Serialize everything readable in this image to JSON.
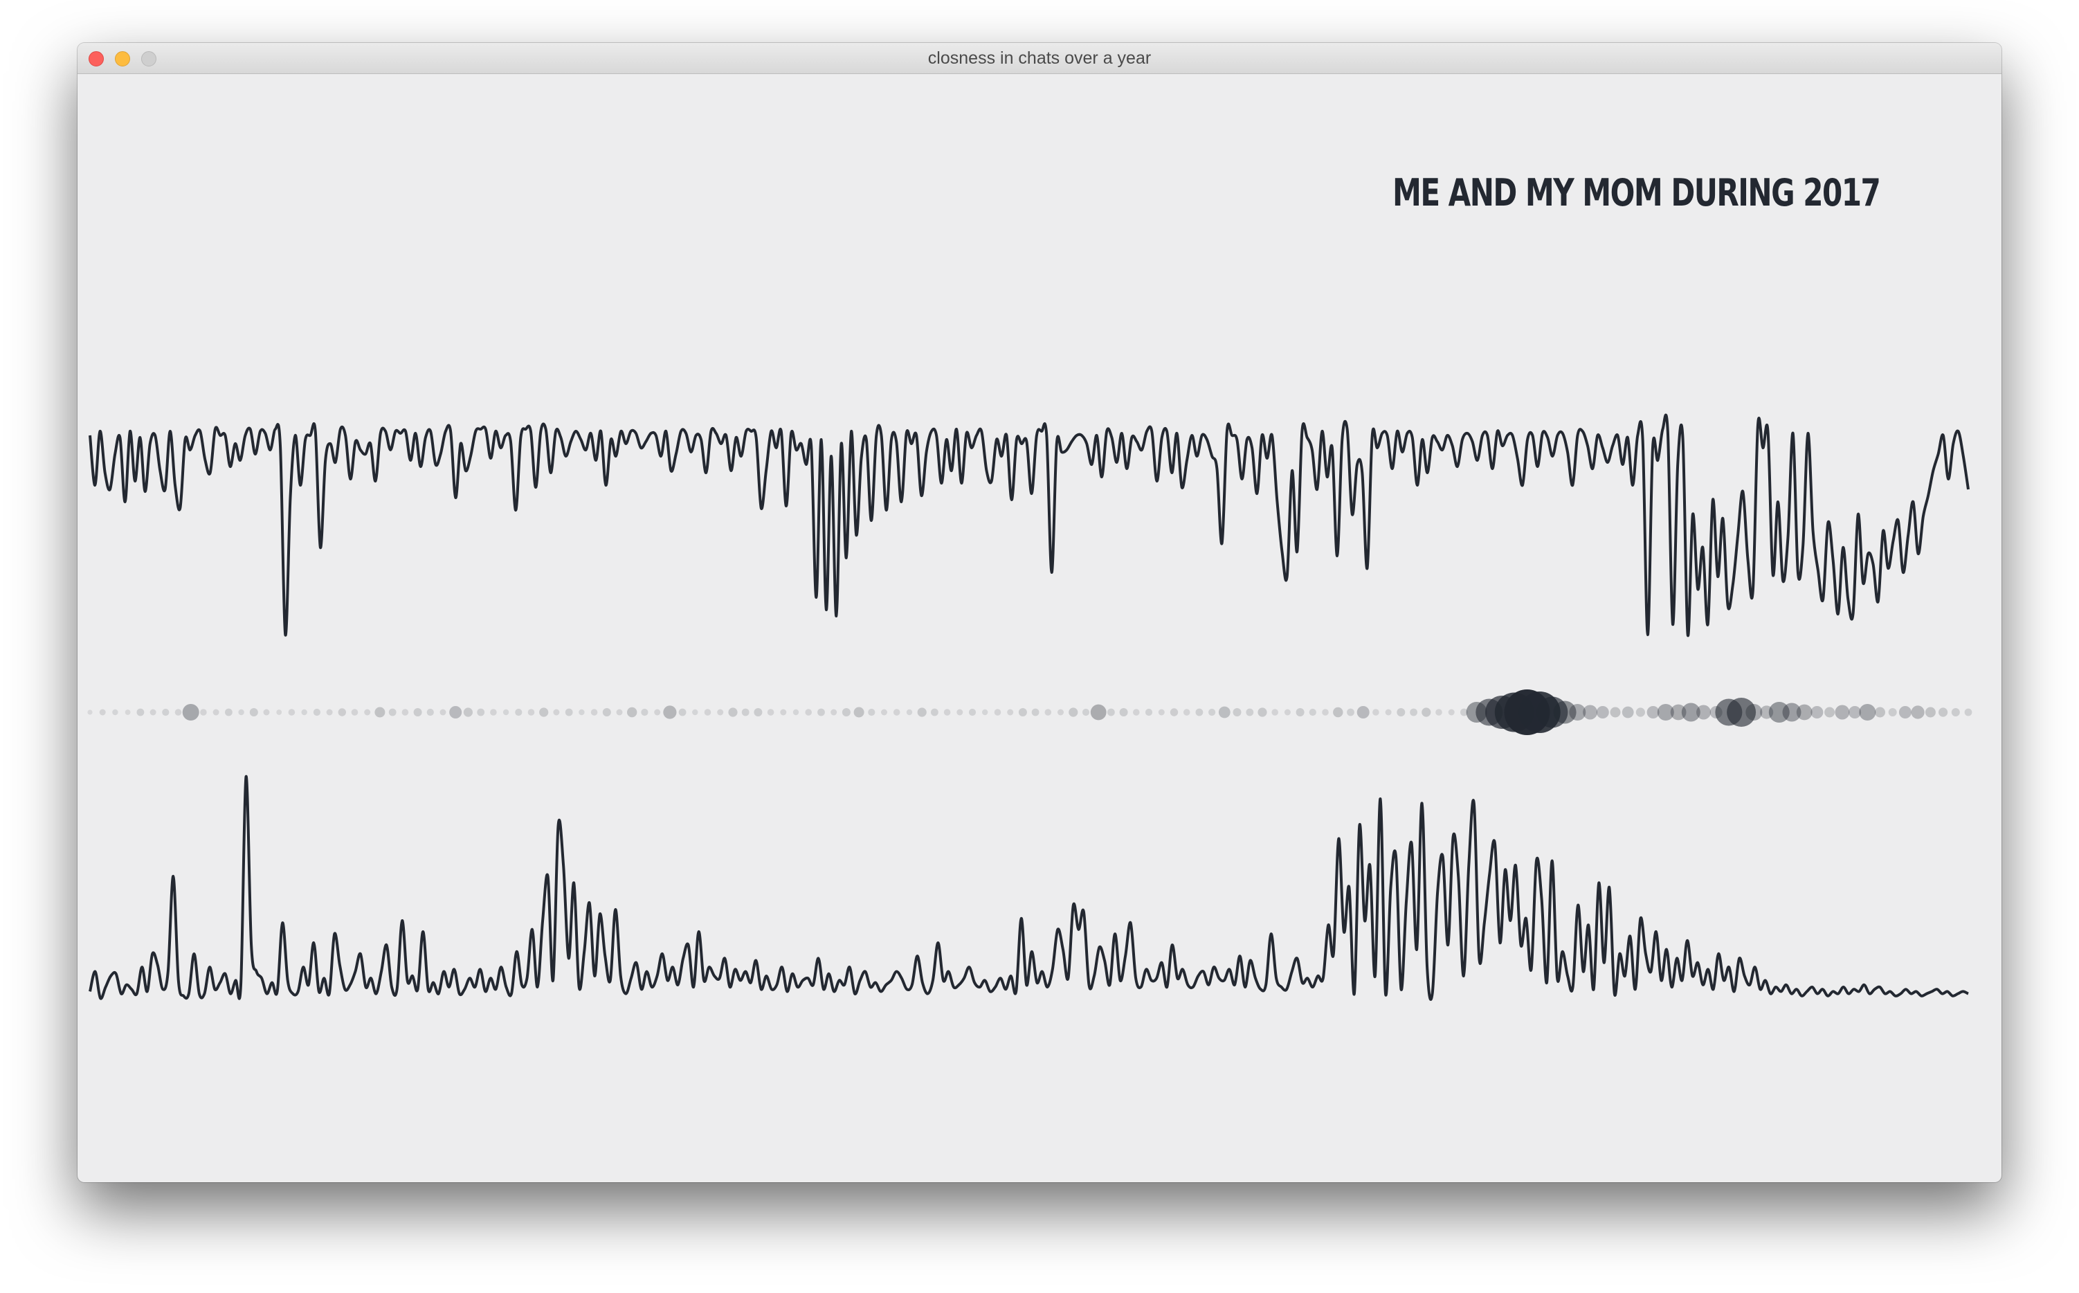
{
  "window": {
    "title": "closness in chats over a year"
  },
  "colors": {
    "background": "#ededee",
    "line": "#232831",
    "dot": "#232831"
  },
  "chart_data": {
    "type": "line",
    "title": "ME AND MY MOM DURING 2017",
    "xlabel": "",
    "ylabel": "",
    "grid": false,
    "legend": "none",
    "x_domain": [
      1,
      365
    ],
    "description_of_encoding": "",
    "series": [
      {
        "role": "upper",
        "values": [
          0.04,
          0.28,
          0.02,
          0.22,
          0.3,
          0.13,
          0.05,
          0.36,
          0.02,
          0.26,
          0.05,
          0.31,
          0.08,
          0.04,
          0.21,
          0.3,
          0.02,
          0.28,
          0.39,
          0.06,
          0.11,
          0.04,
          0.02,
          0.16,
          0.22,
          0.01,
          0.04,
          0.04,
          0.19,
          0.08,
          0.16,
          0.04,
          0.01,
          0.13,
          0.02,
          0.03,
          0.11,
          0.01,
          0.09,
          1.0,
          0.34,
          0.04,
          0.28,
          0.06,
          0.04,
          0.02,
          0.58,
          0.16,
          0.08,
          0.17,
          0.01,
          0.04,
          0.25,
          0.07,
          0.11,
          0.13,
          0.08,
          0.26,
          0.03,
          0.02,
          0.11,
          0.02,
          0.03,
          0.02,
          0.16,
          0.03,
          0.19,
          0.05,
          0.02,
          0.18,
          0.13,
          0.02,
          0.02,
          0.34,
          0.08,
          0.21,
          0.14,
          0.02,
          0.01,
          0.01,
          0.15,
          0.02,
          0.1,
          0.04,
          0.07,
          0.4,
          0.05,
          0.01,
          0.02,
          0.29,
          0.02,
          0.01,
          0.22,
          0.02,
          0.05,
          0.14,
          0.07,
          0.02,
          0.06,
          0.11,
          0.03,
          0.16,
          0.02,
          0.28,
          0.06,
          0.14,
          0.02,
          0.08,
          0.02,
          0.03,
          0.1,
          0.07,
          0.03,
          0.04,
          0.14,
          0.02,
          0.21,
          0.13,
          0.02,
          0.03,
          0.12,
          0.04,
          0.06,
          0.22,
          0.02,
          0.03,
          0.08,
          0.04,
          0.21,
          0.05,
          0.14,
          0.02,
          0.02,
          0.05,
          0.39,
          0.21,
          0.02,
          0.1,
          0.02,
          0.38,
          0.03,
          0.11,
          0.08,
          0.18,
          0.09,
          0.82,
          0.06,
          0.88,
          0.14,
          0.91,
          0.08,
          0.63,
          0.02,
          0.52,
          0.15,
          0.06,
          0.45,
          0.04,
          0.04,
          0.4,
          0.06,
          0.07,
          0.36,
          0.03,
          0.08,
          0.04,
          0.33,
          0.12,
          0.02,
          0.04,
          0.27,
          0.06,
          0.21,
          0.01,
          0.27,
          0.03,
          0.1,
          0.04,
          0.02,
          0.21,
          0.26,
          0.06,
          0.14,
          0.04,
          0.35,
          0.06,
          0.08,
          0.07,
          0.32,
          0.04,
          0.02,
          0.04,
          0.7,
          0.08,
          0.12,
          0.11,
          0.07,
          0.04,
          0.04,
          0.08,
          0.18,
          0.04,
          0.24,
          0.02,
          0.05,
          0.17,
          0.03,
          0.2,
          0.05,
          0.07,
          0.11,
          0.02,
          0.02,
          0.26,
          0.05,
          0.02,
          0.22,
          0.03,
          0.29,
          0.16,
          0.04,
          0.14,
          0.04,
          0.06,
          0.14,
          0.2,
          0.56,
          0.02,
          0.04,
          0.06,
          0.25,
          0.06,
          0.1,
          0.32,
          0.04,
          0.15,
          0.04,
          0.35,
          0.6,
          0.72,
          0.21,
          0.6,
          0.02,
          0.05,
          0.11,
          0.3,
          0.02,
          0.24,
          0.1,
          0.62,
          0.06,
          0.01,
          0.42,
          0.18,
          0.22,
          0.68,
          0.04,
          0.1,
          0.03,
          0.04,
          0.2,
          0.02,
          0.12,
          0.03,
          0.05,
          0.28,
          0.06,
          0.22,
          0.05,
          0.07,
          0.11,
          0.04,
          0.09,
          0.19,
          0.06,
          0.03,
          0.07,
          0.16,
          0.04,
          0.04,
          0.2,
          0.02,
          0.09,
          0.04,
          0.04,
          0.15,
          0.28,
          0.06,
          0.04,
          0.19,
          0.03,
          0.05,
          0.14,
          0.04,
          0.03,
          0.12,
          0.28,
          0.04,
          0.02,
          0.09,
          0.2,
          0.04,
          0.1,
          0.17,
          0.09,
          0.04,
          0.18,
          0.05,
          0.28,
          0.04,
          0.06,
          1.0,
          0.1,
          0.16,
          0.01,
          0.02,
          0.95,
          0.18,
          0.05,
          1.0,
          0.42,
          0.78,
          0.58,
          0.95,
          0.35,
          0.72,
          0.44,
          0.86,
          0.76,
          0.52,
          0.31,
          0.64,
          0.79,
          -0.01,
          0.1,
          0.02,
          0.71,
          0.36,
          0.74,
          0.53,
          0.03,
          0.7,
          0.57,
          0.03,
          0.5,
          0.69,
          0.83,
          0.46,
          0.64,
          0.9,
          0.58,
          0.83,
          0.9,
          0.42,
          0.75,
          0.61,
          0.66,
          0.84,
          0.5,
          0.68,
          0.55,
          0.45,
          0.7,
          0.52,
          0.36,
          0.61,
          0.43,
          0.33,
          0.21,
          0.13,
          0.04,
          0.25,
          0.08,
          0.02,
          0.14,
          0.3
        ]
      },
      {
        "role": "lower",
        "values": [
          0.03,
          0.12,
          0.0,
          0.05,
          0.1,
          0.11,
          0.02,
          0.06,
          0.04,
          0.02,
          0.14,
          0.03,
          0.2,
          0.15,
          0.04,
          0.12,
          0.55,
          0.08,
          0.01,
          0.02,
          0.2,
          0.02,
          0.02,
          0.14,
          0.04,
          0.07,
          0.11,
          0.02,
          0.08,
          0.06,
          1.0,
          0.24,
          0.12,
          0.09,
          0.02,
          0.07,
          0.03,
          0.34,
          0.08,
          0.02,
          0.03,
          0.14,
          0.06,
          0.25,
          0.03,
          0.09,
          0.02,
          0.29,
          0.15,
          0.04,
          0.06,
          0.12,
          0.2,
          0.05,
          0.09,
          0.02,
          0.12,
          0.24,
          0.05,
          0.04,
          0.35,
          0.08,
          0.1,
          0.04,
          0.3,
          0.04,
          0.07,
          0.02,
          0.12,
          0.05,
          0.13,
          0.02,
          0.04,
          0.09,
          0.05,
          0.13,
          0.03,
          0.09,
          0.04,
          0.14,
          0.05,
          0.02,
          0.21,
          0.06,
          0.09,
          0.31,
          0.05,
          0.35,
          0.55,
          0.08,
          0.78,
          0.6,
          0.18,
          0.52,
          0.05,
          0.21,
          0.43,
          0.1,
          0.38,
          0.19,
          0.08,
          0.4,
          0.1,
          0.02,
          0.09,
          0.16,
          0.04,
          0.12,
          0.05,
          0.1,
          0.2,
          0.08,
          0.14,
          0.06,
          0.18,
          0.24,
          0.05,
          0.3,
          0.08,
          0.14,
          0.1,
          0.09,
          0.18,
          0.05,
          0.13,
          0.08,
          0.12,
          0.07,
          0.17,
          0.04,
          0.1,
          0.04,
          0.06,
          0.14,
          0.03,
          0.11,
          0.05,
          0.08,
          0.09,
          0.06,
          0.18,
          0.04,
          0.11,
          0.03,
          0.08,
          0.06,
          0.14,
          0.02,
          0.08,
          0.12,
          0.05,
          0.07,
          0.03,
          0.06,
          0.08,
          0.12,
          0.09,
          0.04,
          0.06,
          0.19,
          0.07,
          0.02,
          0.08,
          0.25,
          0.08,
          0.12,
          0.05,
          0.06,
          0.09,
          0.14,
          0.07,
          0.05,
          0.08,
          0.03,
          0.05,
          0.09,
          0.04,
          0.1,
          0.03,
          0.36,
          0.06,
          0.21,
          0.07,
          0.12,
          0.05,
          0.13,
          0.31,
          0.22,
          0.09,
          0.42,
          0.31,
          0.39,
          0.06,
          0.1,
          0.23,
          0.17,
          0.06,
          0.29,
          0.08,
          0.19,
          0.34,
          0.09,
          0.05,
          0.13,
          0.08,
          0.09,
          0.16,
          0.05,
          0.24,
          0.09,
          0.13,
          0.06,
          0.05,
          0.1,
          0.12,
          0.06,
          0.14,
          0.09,
          0.08,
          0.13,
          0.06,
          0.19,
          0.05,
          0.17,
          0.09,
          0.04,
          0.06,
          0.29,
          0.09,
          0.05,
          0.04,
          0.12,
          0.18,
          0.07,
          0.09,
          0.05,
          0.1,
          0.09,
          0.33,
          0.2,
          0.72,
          0.3,
          0.5,
          0.02,
          0.78,
          0.35,
          0.6,
          0.1,
          0.9,
          0.02,
          0.5,
          0.64,
          0.04,
          0.44,
          0.7,
          0.22,
          0.88,
          0.14,
          0.02,
          0.48,
          0.64,
          0.24,
          0.73,
          0.55,
          0.1,
          0.6,
          0.88,
          0.18,
          0.34,
          0.56,
          0.7,
          0.25,
          0.58,
          0.35,
          0.6,
          0.24,
          0.36,
          0.13,
          0.62,
          0.45,
          0.07,
          0.62,
          0.09,
          0.21,
          0.1,
          0.05,
          0.42,
          0.12,
          0.33,
          0.04,
          0.52,
          0.16,
          0.5,
          0.02,
          0.2,
          0.1,
          0.28,
          0.04,
          0.36,
          0.2,
          0.12,
          0.3,
          0.08,
          0.22,
          0.05,
          0.18,
          0.08,
          0.26,
          0.1,
          0.16,
          0.06,
          0.13,
          0.04,
          0.2,
          0.08,
          0.14,
          0.03,
          0.18,
          0.1,
          0.06,
          0.14,
          0.04,
          0.08,
          0.02,
          0.05,
          0.03,
          0.06,
          0.02,
          0.04,
          0.01,
          0.03,
          0.05,
          0.02,
          0.04,
          0.01,
          0.03,
          0.02,
          0.05,
          0.02,
          0.04,
          0.03,
          0.06,
          0.02,
          0.04,
          0.05,
          0.02,
          0.03,
          0.01,
          0.02,
          0.04,
          0.02,
          0.03,
          0.01,
          0.02,
          0.03,
          0.04,
          0.02,
          0.03,
          0.01,
          0.02,
          0.03,
          0.02
        ]
      }
    ],
    "dots": {
      "values": [
        0.02,
        0.05,
        0.04,
        0.03,
        0.08,
        0.05,
        0.07,
        0.06,
        0.3,
        0.06,
        0.05,
        0.08,
        0.04,
        0.1,
        0.05,
        0.03,
        0.06,
        0.04,
        0.07,
        0.05,
        0.09,
        0.06,
        0.05,
        0.15,
        0.08,
        0.06,
        0.1,
        0.07,
        0.05,
        0.2,
        0.12,
        0.08,
        0.06,
        0.04,
        0.07,
        0.06,
        0.12,
        0.05,
        0.08,
        0.04,
        0.06,
        0.1,
        0.05,
        0.14,
        0.07,
        0.05,
        0.22,
        0.08,
        0.04,
        0.06,
        0.05,
        0.12,
        0.08,
        0.1,
        0.06,
        0.05,
        0.04,
        0.06,
        0.08,
        0.05,
        0.1,
        0.15,
        0.07,
        0.05,
        0.06,
        0.04,
        0.12,
        0.08,
        0.06,
        0.05,
        0.07,
        0.04,
        0.06,
        0.05,
        0.1,
        0.08,
        0.06,
        0.05,
        0.12,
        0.07,
        0.28,
        0.08,
        0.1,
        0.06,
        0.07,
        0.05,
        0.09,
        0.06,
        0.08,
        0.07,
        0.18,
        0.1,
        0.08,
        0.12,
        0.06,
        0.05,
        0.1,
        0.07,
        0.06,
        0.14,
        0.08,
        0.2,
        0.06,
        0.05,
        0.1,
        0.08,
        0.12,
        0.06,
        0.05,
        0.08,
        0.4,
        0.55,
        0.7,
        0.85,
        1.0,
        0.9,
        0.65,
        0.45,
        0.3,
        0.25,
        0.2,
        0.15,
        0.18,
        0.12,
        0.2,
        0.3,
        0.28,
        0.35,
        0.25,
        0.2,
        0.55,
        0.6,
        0.3,
        0.22,
        0.4,
        0.35,
        0.28,
        0.2,
        0.15,
        0.25,
        0.2,
        0.3,
        0.15,
        0.1,
        0.2,
        0.22,
        0.15,
        0.12,
        0.1,
        0.08
      ]
    }
  }
}
